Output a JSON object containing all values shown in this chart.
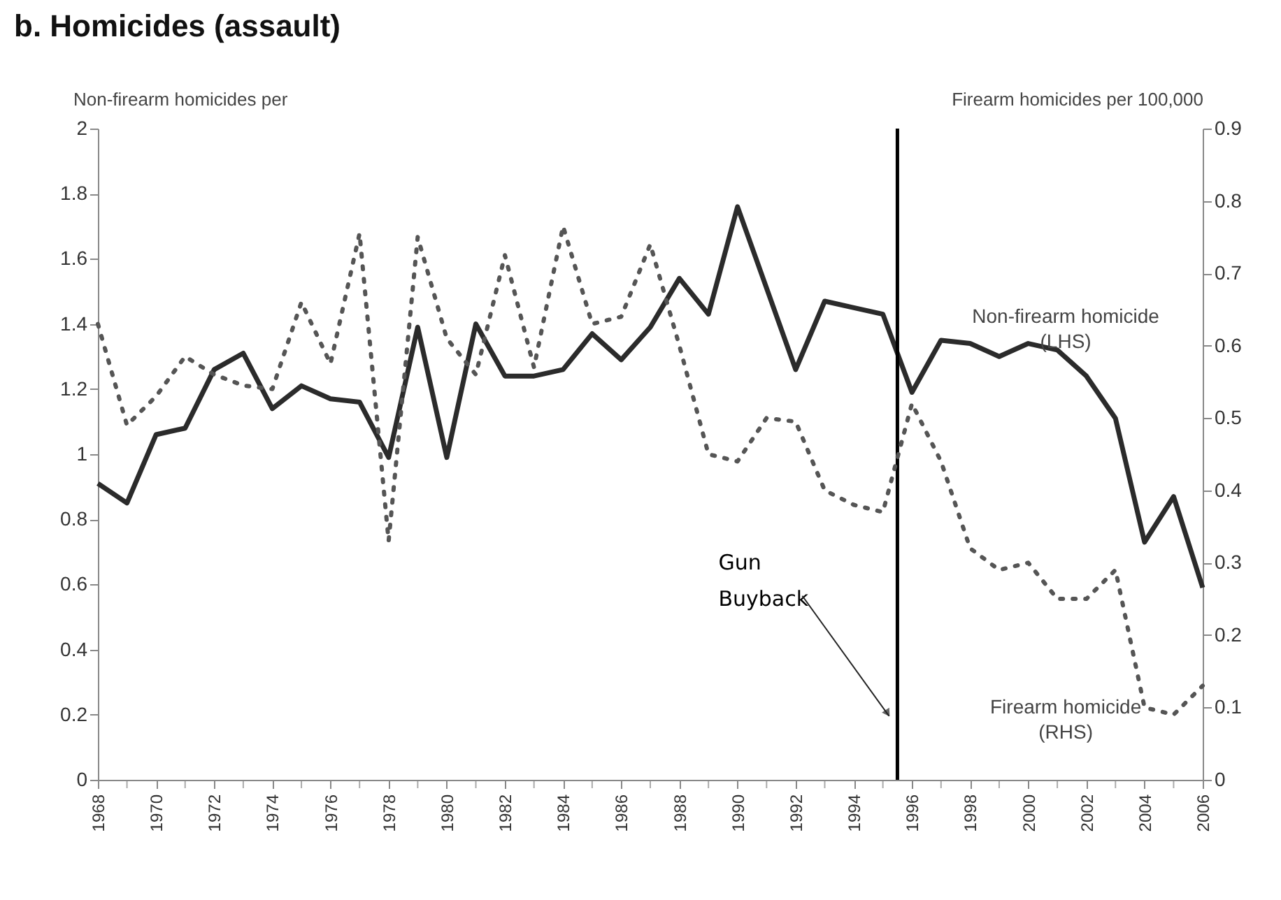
{
  "chart_data": {
    "type": "line",
    "title": "b.  Homicides (assault)",
    "ylabel": "Non-firearm homicides per",
    "y2label": "Firearm homicides per 100,000",
    "x": [
      1968,
      1969,
      1970,
      1971,
      1972,
      1973,
      1974,
      1975,
      1976,
      1977,
      1978,
      1979,
      1980,
      1981,
      1982,
      1983,
      1984,
      1985,
      1986,
      1987,
      1988,
      1989,
      1990,
      1991,
      1992,
      1993,
      1994,
      1995,
      1996,
      1997,
      1998,
      1999,
      2000,
      2001,
      2002,
      2003,
      2004,
      2005,
      2006
    ],
    "series": [
      {
        "name": "Non-firearm homicide (LHS)",
        "color": "#2b2b2b",
        "line_style": "solid",
        "values": [
          0.91,
          0.85,
          1.06,
          1.08,
          1.26,
          1.31,
          1.14,
          1.21,
          1.17,
          1.16,
          0.99,
          1.39,
          0.99,
          1.4,
          1.24,
          1.24,
          1.26,
          1.37,
          1.29,
          1.39,
          1.54,
          1.43,
          1.76,
          1.51,
          1.26,
          1.47,
          1.45,
          1.43,
          1.19,
          1.35,
          1.34,
          1.3,
          1.34,
          1.32,
          1.24,
          1.11,
          0.73,
          0.87,
          0.59
        ]
      },
      {
        "name": "Firearm homicide (RHS)",
        "color": "#555555",
        "line_style": "dotted",
        "axis": "y2",
        "values": [
          0.63,
          0.49,
          0.53,
          0.585,
          0.56,
          0.545,
          0.54,
          0.66,
          0.575,
          0.755,
          0.33,
          0.75,
          0.61,
          0.56,
          0.725,
          0.57,
          0.765,
          0.63,
          0.64,
          0.74,
          0.6,
          0.45,
          0.44,
          0.5,
          0.495,
          0.4,
          0.38,
          0.37,
          0.52,
          0.44,
          0.32,
          0.29,
          0.3,
          0.25,
          0.25,
          0.29,
          0.1,
          0.09,
          0.13
        ]
      }
    ],
    "xlim": [
      1968,
      2006
    ],
    "xticks": [
      1968,
      {
        "value": 1969,
        "label": null
      },
      1970,
      {
        "value": 1971,
        "label": null
      },
      1972,
      {
        "value": 1973,
        "label": null
      },
      1974,
      {
        "value": 1975,
        "label": null
      },
      1976,
      {
        "value": 1977,
        "label": null
      },
      1978,
      {
        "value": 1979,
        "label": null
      },
      1980,
      {
        "value": 1981,
        "label": null
      },
      1982,
      {
        "value": 1983,
        "label": null
      },
      1984,
      {
        "value": 1985,
        "label": null
      },
      1986,
      {
        "value": 1987,
        "label": null
      },
      1988,
      {
        "value": 1989,
        "label": null
      },
      1990,
      {
        "value": 1991,
        "label": null
      },
      1992,
      {
        "value": 1993,
        "label": null
      },
      1994,
      {
        "value": 1995,
        "label": null
      },
      1996,
      {
        "value": 1997,
        "label": null
      },
      1998,
      {
        "value": 1999,
        "label": null
      },
      2000,
      {
        "value": 2001,
        "label": null
      },
      2002,
      {
        "value": 2003,
        "label": null
      },
      2004,
      {
        "value": 2005,
        "label": null
      },
      2006
    ],
    "ylim": [
      0,
      2
    ],
    "yticks": [
      0,
      0.2,
      0.4,
      0.6,
      0.8,
      1,
      1.2,
      1.4,
      1.6,
      1.8,
      2
    ],
    "y2lim": [
      0,
      0.9
    ],
    "y2ticks": [
      0,
      0.1,
      0.2,
      0.3,
      0.4,
      0.5,
      0.6,
      0.7,
      0.8,
      0.9
    ],
    "ref_lines": [
      {
        "axis": "x",
        "value": 1995.5,
        "color": "#000000",
        "label": "Gun Buyback"
      }
    ],
    "grid": false,
    "marker": "none"
  }
}
